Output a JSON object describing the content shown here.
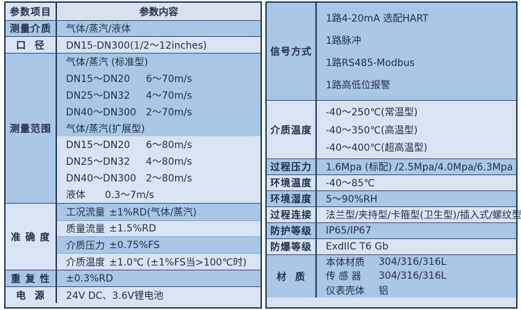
{
  "colors": {
    "border": "#1c3b63",
    "row_line": "#2f5181",
    "band_medium": "#a9c6e7",
    "band_light": "#d9e4f3",
    "header_bg": "#dae1ec",
    "text": "#22314e"
  },
  "left": {
    "header": {
      "item": "参数项目",
      "content": "参数内容"
    },
    "medium": {
      "label": "测量介质",
      "value": "气体/蒸汽/液体"
    },
    "diameter": {
      "label": "口  径",
      "value": "DN15-DN300(1/2～12inches)"
    },
    "range": {
      "label": "测量范围",
      "lines": [
        {
          "k": "气体/蒸汽 (标准型)",
          "v": ""
        },
        {
          "k": "DN15～DN20",
          "v": "6～70m/s"
        },
        {
          "k": "DN25～DN32",
          "v": "4～70m/s"
        },
        {
          "k": "DN40～DN300",
          "v": "2～70m/s"
        },
        {
          "k": "气体/蒸汽(扩展型)",
          "v": ""
        },
        {
          "k": "DN15～DN20",
          "v": "6～80m/s"
        },
        {
          "k": "DN25～DN32",
          "v": "4～80m/s"
        },
        {
          "k": "DN40～DN300",
          "v": "2～80m/s"
        },
        {
          "k": "液体",
          "v": "0.3～7m/s"
        }
      ]
    },
    "accuracy": {
      "label": "准 确 度",
      "lines": [
        {
          "k": "工况流量",
          "v": "±1%RD(气体/蒸汽)"
        },
        {
          "k": "质量流量",
          "v": "±1.5%RD"
        },
        {
          "k": "介质压力",
          "v": "±0.75%FS"
        },
        {
          "k": "介质温度",
          "v": "±1.0℃ (±1%FS当>100℃时)"
        }
      ]
    },
    "repeatability": {
      "label": "重 复 性",
      "value": "±0.3%RD"
    },
    "power": {
      "label": "电  源",
      "value": "24V DC、3.6V锂电池"
    }
  },
  "right": {
    "signal": {
      "label": "信号方式",
      "lines": [
        "1路4-20mA 选配HART",
        "1路脉冲",
        "1路RS485-Modbus",
        "1路高低位报警"
      ]
    },
    "medium_temp": {
      "label": "介质温度",
      "lines": [
        "-40～250℃(常温型)",
        "-40～350℃(高温型)",
        "-40～400℃(超高温型)"
      ]
    },
    "rows": [
      {
        "label": "过程压力",
        "value": "1.6Mpa (标配) /2.5Mpa/4.0Mpa/6.3Mpa"
      },
      {
        "label": "环境温度",
        "value": "-40～85℃"
      },
      {
        "label": "环境湿度",
        "value": "5～90%RH"
      },
      {
        "label": "过程连接",
        "value": "法兰型/夹持型/卡箍型(卫生型)/插入式/螺纹型"
      },
      {
        "label": "防护等级",
        "value": "IP65/IP67"
      },
      {
        "label": "防爆等级",
        "value": "ExdIIC T6 Gb"
      }
    ],
    "material": {
      "label": "材  质",
      "lines": [
        {
          "k": "本体材质",
          "v": "304/316/316L"
        },
        {
          "k": "传 感 器",
          "v": "304/316/316L"
        },
        {
          "k": "仪表壳体",
          "v": "铝"
        }
      ]
    }
  }
}
